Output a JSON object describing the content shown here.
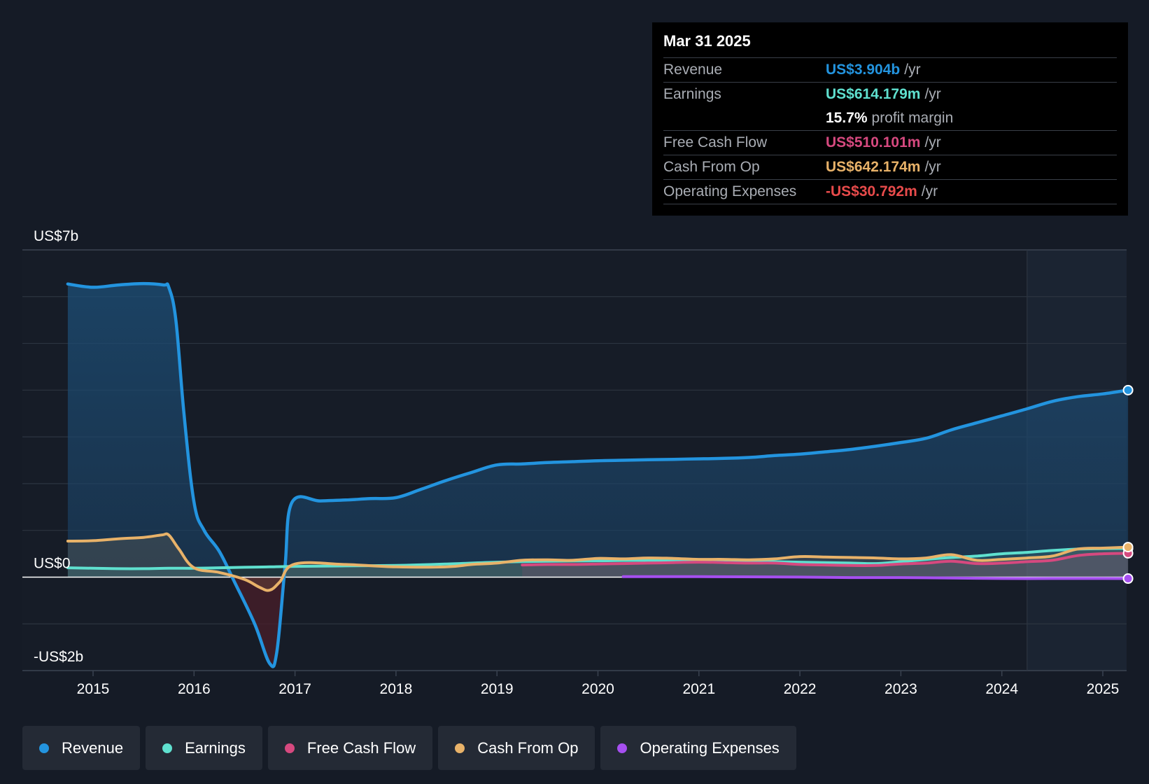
{
  "colors": {
    "background": "#151b26",
    "revenue": "#2394df",
    "earnings": "#5fe0cf",
    "fcf": "#d6497f",
    "cfo": "#e8b269",
    "opex": "#a64ff0"
  },
  "tooltip": {
    "date": "Mar 31 2025",
    "rows": [
      {
        "label": "Revenue",
        "value": "US$3.904b",
        "unit": "/yr",
        "color": "#2394df"
      },
      {
        "label": "Earnings",
        "value": "US$614.179m",
        "unit": "/yr",
        "color": "#5fe0cf"
      },
      {
        "label": "",
        "value": "15.7%",
        "unit": "profit margin",
        "color": "#ffffff"
      },
      {
        "label": "Free Cash Flow",
        "value": "US$510.101m",
        "unit": "/yr",
        "color": "#d6497f"
      },
      {
        "label": "Cash From Op",
        "value": "US$642.174m",
        "unit": "/yr",
        "color": "#e8b269"
      },
      {
        "label": "Operating Expenses",
        "value": "-US$30.792m",
        "unit": "/yr",
        "color": "#e84b4b"
      }
    ]
  },
  "legend": [
    {
      "label": "Revenue",
      "color": "#2394df"
    },
    {
      "label": "Earnings",
      "color": "#5fe0cf"
    },
    {
      "label": "Free Cash Flow",
      "color": "#d6497f"
    },
    {
      "label": "Cash From Op",
      "color": "#e8b269"
    },
    {
      "label": "Operating Expenses",
      "color": "#a64ff0"
    }
  ],
  "chart_data": {
    "type": "line",
    "ylim": [
      -2,
      7
    ],
    "y_tick_labels": [
      {
        "value": 7,
        "label": "US$7b"
      },
      {
        "value": 0,
        "label": "US$0"
      },
      {
        "value": -2,
        "label": "-US$2b"
      }
    ],
    "x_tick_labels": [
      "2015",
      "2016",
      "2017",
      "2018",
      "2019",
      "2020",
      "2021",
      "2022",
      "2023",
      "2024",
      "2025"
    ],
    "xlim": [
      2014.74,
      2025.25
    ],
    "forecast_start": 2024.25,
    "grid": true,
    "legend_position": "bottom",
    "series": [
      {
        "name": "Revenue",
        "key": "revenue",
        "unit": "US$b",
        "points": [
          [
            2014.75,
            6.27
          ],
          [
            2015.0,
            6.2
          ],
          [
            2015.25,
            6.25
          ],
          [
            2015.5,
            6.28
          ],
          [
            2015.7,
            6.25
          ],
          [
            2015.75,
            6.2
          ],
          [
            2015.82,
            5.5
          ],
          [
            2015.9,
            3.5
          ],
          [
            2016.0,
            1.6
          ],
          [
            2016.1,
            1.0
          ],
          [
            2016.25,
            0.55
          ],
          [
            2016.4,
            -0.1
          ],
          [
            2016.6,
            -1.0
          ],
          [
            2016.75,
            -1.85
          ],
          [
            2016.82,
            -1.6
          ],
          [
            2016.9,
            0.2
          ],
          [
            2016.97,
            1.6
          ],
          [
            2017.25,
            1.63
          ],
          [
            2017.5,
            1.65
          ],
          [
            2017.75,
            1.68
          ],
          [
            2018.0,
            1.7
          ],
          [
            2018.25,
            1.88
          ],
          [
            2018.5,
            2.07
          ],
          [
            2018.75,
            2.24
          ],
          [
            2019.0,
            2.4
          ],
          [
            2019.25,
            2.42
          ],
          [
            2019.5,
            2.45
          ],
          [
            2019.75,
            2.47
          ],
          [
            2020.0,
            2.49
          ],
          [
            2020.25,
            2.5
          ],
          [
            2020.5,
            2.51
          ],
          [
            2020.75,
            2.52
          ],
          [
            2021.0,
            2.53
          ],
          [
            2021.25,
            2.54
          ],
          [
            2021.5,
            2.56
          ],
          [
            2021.75,
            2.6
          ],
          [
            2022.0,
            2.63
          ],
          [
            2022.25,
            2.68
          ],
          [
            2022.5,
            2.73
          ],
          [
            2022.75,
            2.8
          ],
          [
            2023.0,
            2.88
          ],
          [
            2023.25,
            2.97
          ],
          [
            2023.5,
            3.15
          ],
          [
            2023.75,
            3.3
          ],
          [
            2024.0,
            3.45
          ],
          [
            2024.25,
            3.6
          ],
          [
            2024.5,
            3.76
          ],
          [
            2024.75,
            3.86
          ],
          [
            2025.0,
            3.92
          ],
          [
            2025.25,
            4.0
          ]
        ]
      },
      {
        "name": "Earnings",
        "key": "earnings",
        "unit": "US$b",
        "points": [
          [
            2014.75,
            0.2
          ],
          [
            2015.0,
            0.19
          ],
          [
            2015.25,
            0.18
          ],
          [
            2015.5,
            0.18
          ],
          [
            2015.75,
            0.19
          ],
          [
            2016.0,
            0.19
          ],
          [
            2016.25,
            0.2
          ],
          [
            2016.5,
            0.21
          ],
          [
            2016.75,
            0.22
          ],
          [
            2017.0,
            0.23
          ],
          [
            2017.5,
            0.24
          ],
          [
            2018.0,
            0.25
          ],
          [
            2018.5,
            0.28
          ],
          [
            2019.0,
            0.32
          ],
          [
            2019.5,
            0.34
          ],
          [
            2020.0,
            0.35
          ],
          [
            2020.5,
            0.36
          ],
          [
            2021.0,
            0.35
          ],
          [
            2021.5,
            0.34
          ],
          [
            2022.0,
            0.32
          ],
          [
            2022.5,
            0.3
          ],
          [
            2022.75,
            0.29
          ],
          [
            2023.0,
            0.33
          ],
          [
            2023.25,
            0.38
          ],
          [
            2023.5,
            0.42
          ],
          [
            2023.75,
            0.45
          ],
          [
            2024.0,
            0.5
          ],
          [
            2024.25,
            0.53
          ],
          [
            2024.5,
            0.57
          ],
          [
            2024.75,
            0.6
          ],
          [
            2025.0,
            0.61
          ],
          [
            2025.25,
            0.614
          ]
        ]
      },
      {
        "name": "Free Cash Flow",
        "key": "fcf",
        "unit": "US$b",
        "points": [
          [
            2019.25,
            0.26
          ],
          [
            2019.5,
            0.27
          ],
          [
            2019.75,
            0.27
          ],
          [
            2020.0,
            0.28
          ],
          [
            2020.25,
            0.29
          ],
          [
            2020.5,
            0.3
          ],
          [
            2020.75,
            0.31
          ],
          [
            2021.0,
            0.32
          ],
          [
            2021.25,
            0.31
          ],
          [
            2021.5,
            0.3
          ],
          [
            2021.75,
            0.3
          ],
          [
            2022.0,
            0.27
          ],
          [
            2022.25,
            0.26
          ],
          [
            2022.5,
            0.25
          ],
          [
            2022.75,
            0.25
          ],
          [
            2023.0,
            0.28
          ],
          [
            2023.25,
            0.3
          ],
          [
            2023.5,
            0.34
          ],
          [
            2023.75,
            0.29
          ],
          [
            2024.0,
            0.3
          ],
          [
            2024.25,
            0.33
          ],
          [
            2024.5,
            0.36
          ],
          [
            2024.75,
            0.46
          ],
          [
            2025.0,
            0.5
          ],
          [
            2025.25,
            0.51
          ]
        ]
      },
      {
        "name": "Cash From Op",
        "key": "cfo",
        "unit": "US$b",
        "points": [
          [
            2014.75,
            0.77
          ],
          [
            2015.0,
            0.78
          ],
          [
            2015.25,
            0.82
          ],
          [
            2015.5,
            0.85
          ],
          [
            2015.68,
            0.9
          ],
          [
            2015.75,
            0.9
          ],
          [
            2015.85,
            0.6
          ],
          [
            2016.0,
            0.2
          ],
          [
            2016.25,
            0.1
          ],
          [
            2016.5,
            -0.05
          ],
          [
            2016.65,
            -0.22
          ],
          [
            2016.75,
            -0.28
          ],
          [
            2016.85,
            -0.1
          ],
          [
            2017.0,
            0.28
          ],
          [
            2017.5,
            0.27
          ],
          [
            2018.0,
            0.22
          ],
          [
            2018.5,
            0.22
          ],
          [
            2018.75,
            0.27
          ],
          [
            2019.0,
            0.3
          ],
          [
            2019.25,
            0.36
          ],
          [
            2019.5,
            0.37
          ],
          [
            2019.75,
            0.36
          ],
          [
            2020.0,
            0.4
          ],
          [
            2020.25,
            0.39
          ],
          [
            2020.5,
            0.41
          ],
          [
            2020.75,
            0.4
          ],
          [
            2021.0,
            0.38
          ],
          [
            2021.25,
            0.38
          ],
          [
            2021.5,
            0.37
          ],
          [
            2021.75,
            0.39
          ],
          [
            2022.0,
            0.44
          ],
          [
            2022.25,
            0.43
          ],
          [
            2022.5,
            0.42
          ],
          [
            2022.75,
            0.41
          ],
          [
            2023.0,
            0.39
          ],
          [
            2023.25,
            0.41
          ],
          [
            2023.5,
            0.48
          ],
          [
            2023.75,
            0.36
          ],
          [
            2024.0,
            0.38
          ],
          [
            2024.25,
            0.41
          ],
          [
            2024.5,
            0.45
          ],
          [
            2024.75,
            0.6
          ],
          [
            2025.0,
            0.62
          ],
          [
            2025.25,
            0.642
          ]
        ]
      },
      {
        "name": "Operating Expenses",
        "key": "opex",
        "unit": "US$b",
        "points": [
          [
            2020.25,
            0.01
          ],
          [
            2021.0,
            0.01
          ],
          [
            2022.0,
            0.0
          ],
          [
            2022.5,
            -0.01
          ],
          [
            2023.0,
            -0.01
          ],
          [
            2023.5,
            -0.02
          ],
          [
            2024.0,
            -0.03
          ],
          [
            2024.5,
            -0.03
          ],
          [
            2025.0,
            -0.03
          ],
          [
            2025.25,
            -0.031
          ]
        ]
      }
    ]
  }
}
